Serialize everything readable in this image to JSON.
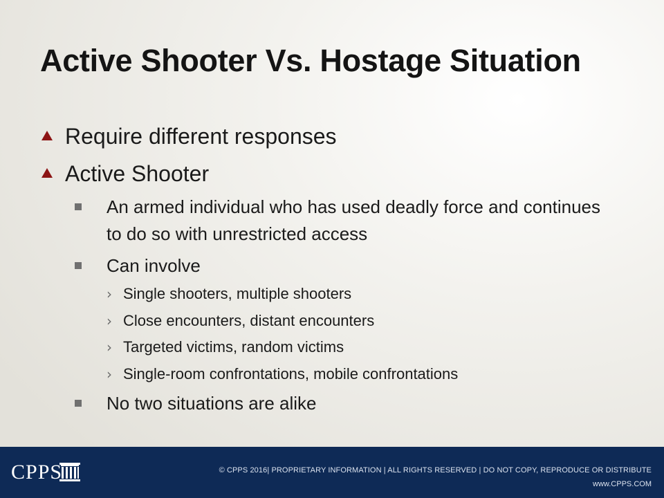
{
  "slide": {
    "title": "Active Shooter Vs. Hostage Situation",
    "accent_color": "#8c1414",
    "footer_color": "#0e2a56"
  },
  "bullets": {
    "l1_a": "Require different responses",
    "l1_b": "Active Shooter",
    "l2_a": "An armed individual who has used deadly force and continues to do so with unrestricted access",
    "l2_b": "Can involve",
    "l3_a": "Single shooters, multiple shooters",
    "l3_b": "Close encounters, distant encounters",
    "l3_c": "Targeted victims, random victims",
    "l3_d": "Single-room confrontations, mobile confrontations",
    "l2_c": "No two situations are alike",
    "l3_marker": "›"
  },
  "footer": {
    "logo_text": "CPPS",
    "copyright": "© CPPS 2016| PROPRIETARY INFORMATION | ALL RIGHTS RESERVED | DO NOT COPY, REPRODUCE OR DISTRIBUTE",
    "website": "www.CPPS.COM"
  }
}
